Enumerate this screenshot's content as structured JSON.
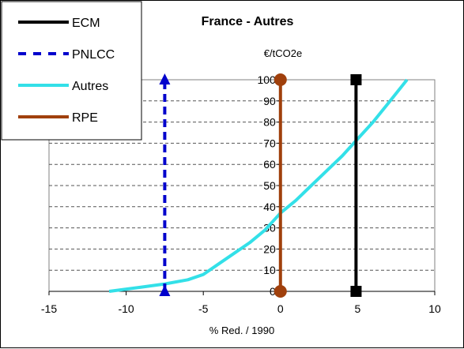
{
  "chart_data": {
    "type": "line",
    "title": "France - Autres",
    "unit_label": "€/tCO2e",
    "xlabel": "% Red. / 1990",
    "ylabel": "",
    "xlim": [
      -15,
      10
    ],
    "ylim": [
      0,
      100
    ],
    "x_ticks": [
      -15,
      -10,
      -5,
      0,
      5,
      10
    ],
    "y_ticks": [
      0,
      10,
      20,
      30,
      40,
      50,
      60,
      70,
      80,
      90,
      100
    ],
    "grid": "horizontal dashed",
    "legend_position": "top-left",
    "series": [
      {
        "name": "ECM",
        "color": "#000000",
        "style": "solid",
        "marker": "square",
        "x": [
          4.9,
          4.9
        ],
        "y": [
          0,
          100
        ]
      },
      {
        "name": "PNLCC",
        "color": "#0000cc",
        "style": "dashed",
        "marker": "triangle",
        "x": [
          -7.5,
          -7.5
        ],
        "y": [
          0,
          100
        ]
      },
      {
        "name": "Autres",
        "color": "#33e0e8",
        "style": "solid",
        "marker": "none",
        "x": [
          -11.1,
          -9,
          -7.5,
          -6,
          -5,
          -4,
          -3,
          -2,
          -1,
          0,
          1,
          2,
          3,
          4,
          5,
          6,
          7,
          8.2
        ],
        "y": [
          0,
          2,
          3.5,
          5.5,
          8,
          13,
          18,
          23,
          29,
          37,
          43,
          50,
          57,
          64,
          72,
          80,
          89,
          100
        ]
      },
      {
        "name": "RPE",
        "color": "#a0400c",
        "style": "solid",
        "marker": "circle",
        "x": [
          0,
          0
        ],
        "y": [
          0,
          100
        ]
      }
    ]
  }
}
